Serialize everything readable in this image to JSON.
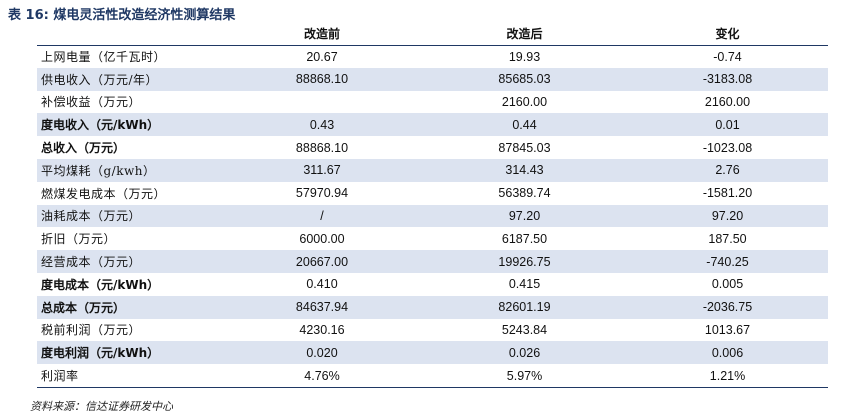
{
  "title": "表 16:  煤电灵活性改造经济性测算结果",
  "columns": [
    "",
    "改造前",
    "改造后",
    "变化"
  ],
  "rows": [
    {
      "label": "上网电量（亿千瓦时）",
      "before": "20.67",
      "after": "19.93",
      "change": "-0.74",
      "bold": false,
      "shaded": false
    },
    {
      "label": "供电收入（万元/年）",
      "before": "88868.10",
      "after": "85685.03",
      "change": "-3183.08",
      "bold": false,
      "shaded": true
    },
    {
      "label": "补偿收益（万元）",
      "before": "",
      "after": "2160.00",
      "change": "2160.00",
      "bold": false,
      "shaded": false
    },
    {
      "label": "度电收入（元/kWh）",
      "before": "0.43",
      "after": "0.44",
      "change": "0.01",
      "bold": true,
      "shaded": true
    },
    {
      "label": "总收入（万元）",
      "before": "88868.10",
      "after": "87845.03",
      "change": "-1023.08",
      "bold": true,
      "shaded": false
    },
    {
      "label": "平均煤耗（g/kwh）",
      "before": "311.67",
      "after": "314.43",
      "change": "2.76",
      "bold": false,
      "shaded": true
    },
    {
      "label": "燃煤发电成本（万元）",
      "before": "57970.94",
      "after": "56389.74",
      "change": "-1581.20",
      "bold": false,
      "shaded": false
    },
    {
      "label": "油耗成本（万元）",
      "before": "/",
      "after": "97.20",
      "change": "97.20",
      "bold": false,
      "shaded": true
    },
    {
      "label": "折旧（万元）",
      "before": "6000.00",
      "after": "6187.50",
      "change": "187.50",
      "bold": false,
      "shaded": false
    },
    {
      "label": "经营成本（万元）",
      "before": "20667.00",
      "after": "19926.75",
      "change": "-740.25",
      "bold": false,
      "shaded": true
    },
    {
      "label": "度电成本（元/kWh）",
      "before": "0.410",
      "after": "0.415",
      "change": "0.005",
      "bold": true,
      "shaded": false
    },
    {
      "label": "总成本（万元）",
      "before": "84637.94",
      "after": "82601.19",
      "change": "-2036.75",
      "bold": true,
      "shaded": true
    },
    {
      "label": "税前利润（万元）",
      "before": "4230.16",
      "after": "5243.84",
      "change": "1013.67",
      "bold": false,
      "shaded": false
    },
    {
      "label": "度电利润（元/kWh）",
      "before": "0.020",
      "after": "0.026",
      "change": "0.006",
      "bold": true,
      "shaded": true
    },
    {
      "label": "利润率",
      "before": "4.76%",
      "after": "5.97%",
      "change": "1.21%",
      "bold": false,
      "shaded": false
    }
  ],
  "source": "资料来源：信达证券研发中心",
  "colors": {
    "title": "#1f3864",
    "rule": "#1f3864",
    "shade": "#dce3f0"
  }
}
